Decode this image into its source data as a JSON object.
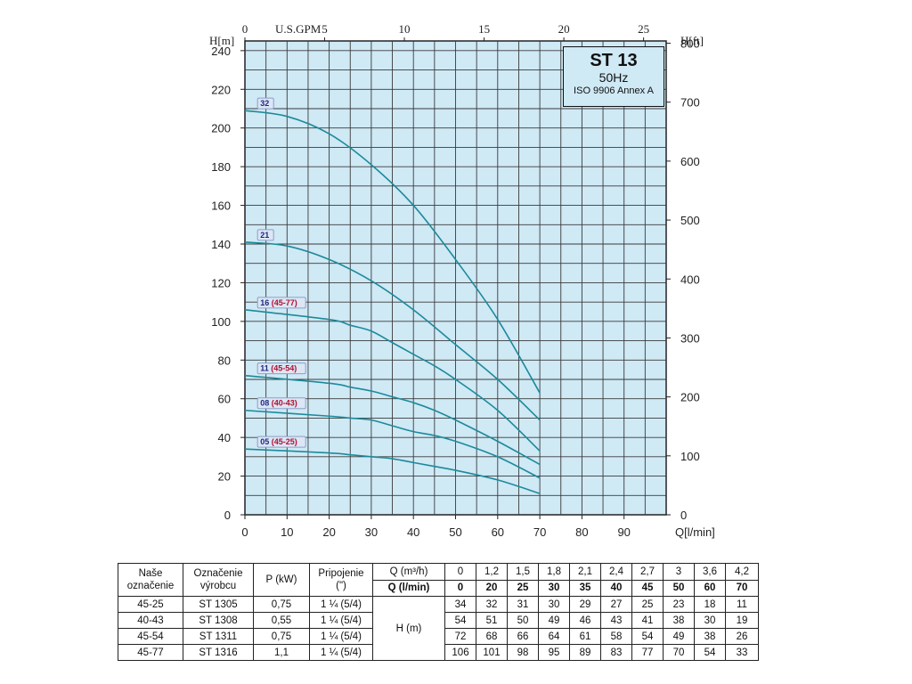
{
  "chart_data": {
    "type": "line",
    "info_box": {
      "model": "ST 13",
      "frequency": "50Hz",
      "standard": "ISO 9906 Annex A"
    },
    "x_axis": {
      "label": "Q[l/min]",
      "ticks": [
        "0",
        "10",
        "20",
        "30",
        "40",
        "50",
        "60",
        "70",
        "80",
        "90"
      ],
      "xlim": [
        0,
        100
      ]
    },
    "x_top_axis": {
      "unit_label": "U.S.GPM",
      "ticks": [
        "0",
        "5",
        "10",
        "15",
        "20",
        "25"
      ]
    },
    "y_left_axis": {
      "label": "H[m]",
      "ticks": [
        "0",
        "20",
        "40",
        "60",
        "80",
        "100",
        "120",
        "140",
        "160",
        "180",
        "200",
        "220",
        "240"
      ],
      "ylim": [
        0,
        245
      ]
    },
    "y_right_axis": {
      "label": "H[ft]",
      "ticks": [
        "0",
        "100",
        "200",
        "300",
        "400",
        "500",
        "600",
        "700",
        "800"
      ]
    },
    "grid": true,
    "series": [
      {
        "name": "32",
        "alt": "",
        "x": [
          0,
          10,
          20,
          30,
          40,
          50,
          60,
          70
        ],
        "y": [
          209,
          206,
          197,
          181,
          160,
          132,
          101,
          63
        ]
      },
      {
        "name": "21",
        "alt": "",
        "x": [
          0,
          10,
          20,
          30,
          40,
          50,
          60,
          70
        ],
        "y": [
          141,
          139,
          132,
          121,
          106,
          88,
          70,
          49
        ]
      },
      {
        "name": "16",
        "alt": "(45-77)",
        "x": [
          0,
          20,
          25,
          30,
          35,
          40,
          45,
          50,
          60,
          70
        ],
        "y": [
          106,
          101,
          98,
          95,
          89,
          83,
          77,
          70,
          54,
          33
        ]
      },
      {
        "name": "11",
        "alt": "(45-54)",
        "x": [
          0,
          20,
          25,
          30,
          35,
          40,
          45,
          50,
          60,
          70
        ],
        "y": [
          72,
          68,
          66,
          64,
          61,
          58,
          54,
          49,
          38,
          26
        ]
      },
      {
        "name": "08",
        "alt": "(40-43)",
        "x": [
          0,
          20,
          25,
          30,
          35,
          40,
          45,
          50,
          60,
          70
        ],
        "y": [
          54,
          51,
          50,
          49,
          46,
          43,
          41,
          38,
          30,
          19
        ]
      },
      {
        "name": "05",
        "alt": "(45-25)",
        "x": [
          0,
          20,
          25,
          30,
          35,
          40,
          45,
          50,
          60,
          70
        ],
        "y": [
          34,
          32,
          31,
          30,
          29,
          27,
          25,
          23,
          18,
          11
        ]
      }
    ]
  },
  "table": {
    "headers": {
      "nase": [
        "Naše",
        "označenie"
      ],
      "oznacenie": [
        "Označenie",
        "výrobcu"
      ],
      "power": "P (kW)",
      "pripojenie": [
        "Pripojenie",
        "(\")"
      ],
      "q_m3h_label": "Q (m³/h)",
      "q_lmin_label": "Q (l/min)",
      "h_label": "H (m)"
    },
    "q_m3h": [
      "0",
      "1,2",
      "1,5",
      "1,8",
      "2,1",
      "2,4",
      "2,7",
      "3",
      "3,6",
      "4,2"
    ],
    "q_lmin": [
      "0",
      "20",
      "25",
      "30",
      "35",
      "40",
      "45",
      "50",
      "60",
      "70"
    ],
    "rows": [
      {
        "nase": "45-25",
        "oznacenie": "ST 1305",
        "power": "0,75",
        "pripojenie": "1 ¼ (5/4)",
        "h": [
          "34",
          "32",
          "31",
          "30",
          "29",
          "27",
          "25",
          "23",
          "18",
          "11"
        ]
      },
      {
        "nase": "40-43",
        "oznacenie": "ST 1308",
        "power": "0,55",
        "pripojenie": "1 ¼ (5/4)",
        "h": [
          "54",
          "51",
          "50",
          "49",
          "46",
          "43",
          "41",
          "38",
          "30",
          "19"
        ]
      },
      {
        "nase": "45-54",
        "oznacenie": "ST 1311",
        "power": "0,75",
        "pripojenie": "1 ¼ (5/4)",
        "h": [
          "72",
          "68",
          "66",
          "64",
          "61",
          "58",
          "54",
          "49",
          "38",
          "26"
        ]
      },
      {
        "nase": "45-77",
        "oznacenie": "ST 1316",
        "power": "1,1",
        "pripojenie": "1 ¼ (5/4)",
        "h": [
          "106",
          "101",
          "98",
          "95",
          "89",
          "83",
          "77",
          "70",
          "54",
          "33"
        ]
      }
    ]
  },
  "colors": {
    "plot_bg": "#cfe9f5",
    "grid": "#3a3a3a",
    "curve": "#1c8a9a",
    "label_box": "#dde6f5"
  }
}
